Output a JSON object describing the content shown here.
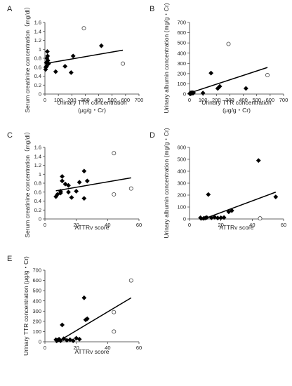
{
  "chart_data": [
    {
      "panel": "A",
      "type": "scatter",
      "xlabel": [
        "Urinary TTR concentration",
        "(μg/g・Cr)"
      ],
      "ylabel": "Serum creatinine concentration（mg/dl）",
      "xlim": [
        0,
        700
      ],
      "ylim": [
        0,
        1.6
      ],
      "xticks": [
        0,
        100,
        200,
        300,
        400,
        500,
        600,
        700
      ],
      "yticks": [
        0,
        0.2,
        0.4,
        0.6,
        0.8,
        1.0,
        1.2,
        1.4,
        1.6
      ],
      "ytick_labels": [
        "0",
        "0.2",
        "0.4",
        "0.6",
        "0.8",
        "1",
        "1.2",
        "1.4",
        "1.6"
      ],
      "series": [
        {
          "style": "filled",
          "points": [
            [
              5,
              0.55
            ],
            [
              8,
              0.6
            ],
            [
              10,
              0.7
            ],
            [
              12,
              0.62
            ],
            [
              15,
              0.8
            ],
            [
              18,
              0.95
            ],
            [
              20,
              0.85
            ],
            [
              22,
              0.75
            ],
            [
              28,
              0.68
            ],
            [
              80,
              0.5
            ],
            [
              150,
              0.62
            ],
            [
              195,
              0.48
            ],
            [
              210,
              0.85
            ],
            [
              420,
              1.08
            ]
          ]
        },
        {
          "style": "open",
          "points": [
            [
              290,
              1.47
            ],
            [
              580,
              0.68
            ]
          ]
        }
      ],
      "trendline": [
        [
          0,
          0.68
        ],
        [
          580,
          0.98
        ]
      ]
    },
    {
      "panel": "B",
      "type": "scatter",
      "xlabel": [
        "Urinary TTR concentration",
        "(μg/g・Cr)"
      ],
      "ylabel": "Urinary albumin concentration (mg/g・Cr)",
      "xlim": [
        0,
        700
      ],
      "ylim": [
        0,
        700
      ],
      "xticks": [
        0,
        100,
        200,
        300,
        400,
        500,
        600,
        700
      ],
      "yticks": [
        0,
        100,
        200,
        300,
        400,
        500,
        600,
        700
      ],
      "ytick_labels": [
        "0",
        "100",
        "200",
        "300",
        "400",
        "500",
        "600",
        "700"
      ],
      "series": [
        {
          "style": "filled",
          "points": [
            [
              2,
              5
            ],
            [
              5,
              8
            ],
            [
              8,
              3
            ],
            [
              10,
              12
            ],
            [
              12,
              6
            ],
            [
              15,
              10
            ],
            [
              20,
              15
            ],
            [
              25,
              8
            ],
            [
              30,
              12
            ],
            [
              100,
              10
            ],
            [
              160,
              205
            ],
            [
              210,
              55
            ],
            [
              225,
              75
            ],
            [
              420,
              55
            ]
          ]
        },
        {
          "style": "open",
          "points": [
            [
              290,
              490
            ],
            [
              580,
              185
            ]
          ]
        }
      ],
      "trendline": [
        [
          0,
          10
        ],
        [
          580,
          260
        ]
      ]
    },
    {
      "panel": "C",
      "type": "scatter",
      "xlabel": [
        "ATTRv score"
      ],
      "ylabel": "Serum creatinine concentration（mg/dl）",
      "xlim": [
        0,
        60
      ],
      "ylim": [
        0,
        1.6
      ],
      "xticks": [
        0,
        20,
        40,
        60
      ],
      "yticks": [
        0,
        0.2,
        0.4,
        0.6,
        0.8,
        1.0,
        1.2,
        1.4,
        1.6
      ],
      "ytick_labels": [
        "0",
        "0.2",
        "0.4",
        "0.6",
        "0.8",
        "1",
        "1.2",
        "1.4",
        "1.6"
      ],
      "series": [
        {
          "style": "filled",
          "points": [
            [
              7,
              0.5
            ],
            [
              8,
              0.55
            ],
            [
              10,
              0.62
            ],
            [
              10,
              0.58
            ],
            [
              11,
              0.95
            ],
            [
              11,
              0.85
            ],
            [
              13,
              0.78
            ],
            [
              15,
              0.75
            ],
            [
              15,
              0.6
            ],
            [
              17,
              0.48
            ],
            [
              20,
              0.62
            ],
            [
              22,
              0.82
            ],
            [
              25,
              0.46
            ],
            [
              25,
              1.07
            ],
            [
              27,
              0.85
            ]
          ]
        },
        {
          "style": "open",
          "points": [
            [
              44,
              1.47
            ],
            [
              44,
              0.55
            ],
            [
              55,
              0.68
            ]
          ]
        }
      ],
      "trendline": [
        [
          7,
          0.63
        ],
        [
          55,
          0.92
        ]
      ]
    },
    {
      "panel": "D",
      "type": "scatter",
      "xlabel": [
        "ATTRv score"
      ],
      "ylabel": "Urinary albumin concentration (mg/g・Cr)",
      "xlim": [
        0,
        60
      ],
      "ylim": [
        0,
        600
      ],
      "xticks": [
        0,
        20,
        40,
        60
      ],
      "yticks": [
        0,
        100,
        200,
        300,
        400,
        500,
        600
      ],
      "ytick_labels": [
        "0",
        "100",
        "200",
        "300",
        "400",
        "500",
        "600"
      ],
      "series": [
        {
          "style": "filled",
          "points": [
            [
              7,
              10
            ],
            [
              9,
              5
            ],
            [
              10,
              8
            ],
            [
              11,
              12
            ],
            [
              12,
              205
            ],
            [
              14,
              10
            ],
            [
              16,
              15
            ],
            [
              18,
              8
            ],
            [
              20,
              10
            ],
            [
              22,
              12
            ],
            [
              25,
              60
            ],
            [
              27,
              70
            ],
            [
              44,
              490
            ],
            [
              55,
              185
            ]
          ]
        },
        {
          "style": "open",
          "points": [
            [
              45,
              5
            ]
          ]
        }
      ],
      "trendline": [
        [
          7,
          -10
        ],
        [
          55,
          225
        ]
      ]
    },
    {
      "panel": "E",
      "type": "scatter",
      "xlabel": [
        "ATTRv score"
      ],
      "ylabel": "Urinary TTR concentration (μg/g・Cr)",
      "xlim": [
        0,
        60
      ],
      "ylim": [
        0,
        700
      ],
      "xticks": [
        0,
        20,
        40,
        60
      ],
      "yticks": [
        0,
        100,
        200,
        300,
        400,
        500,
        600,
        700
      ],
      "ytick_labels": [
        "0",
        "100",
        "200",
        "300",
        "400",
        "500",
        "600",
        "700"
      ],
      "series": [
        {
          "style": "filled",
          "points": [
            [
              7,
              20
            ],
            [
              8,
              15
            ],
            [
              9,
              25
            ],
            [
              10,
              10
            ],
            [
              11,
              165
            ],
            [
              12,
              30
            ],
            [
              14,
              15
            ],
            [
              16,
              20
            ],
            [
              18,
              10
            ],
            [
              20,
              35
            ],
            [
              22,
              25
            ],
            [
              25,
              430
            ],
            [
              26,
              215
            ],
            [
              27,
              225
            ]
          ]
        },
        {
          "style": "open",
          "points": [
            [
              44,
              290
            ],
            [
              44,
              100
            ],
            [
              55,
              600
            ]
          ]
        }
      ],
      "trendline": [
        [
          7,
          -10
        ],
        [
          55,
          430
        ]
      ]
    }
  ]
}
